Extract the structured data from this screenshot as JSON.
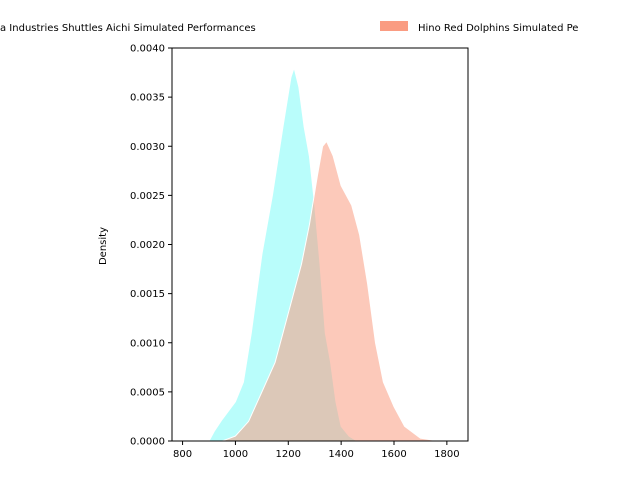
{
  "chart_data": {
    "type": "area",
    "subtype": "kde-density",
    "title": "",
    "xlabel": "",
    "ylabel": "Density",
    "xlim": [
      760,
      1880
    ],
    "ylim": [
      0,
      0.004
    ],
    "xticks": [
      800,
      1000,
      1200,
      1400,
      1600,
      1800
    ],
    "xtick_labels": [
      "800",
      "1000",
      "1200",
      "1400",
      "1600",
      "1800"
    ],
    "yticks": [
      0,
      0.0005,
      0.001,
      0.0015,
      0.002,
      0.0025,
      0.003,
      0.0035,
      0.004
    ],
    "ytick_labels": [
      "0.0000",
      "0.0005",
      "0.0010",
      "0.0015",
      "0.0020",
      "0.0025",
      "0.0030",
      "0.0035",
      "0.0040"
    ],
    "grid": false,
    "legend_position": "top, above plot",
    "series": [
      {
        "name": "Toyota Industries Shuttles Aichi Simulated Performances",
        "legend_label": "a Industries Shuttles Aichi Simulated Performances",
        "color": "#7ffbf8",
        "points": [
          [
            900,
            0
          ],
          [
            920,
            0.0001
          ],
          [
            950,
            0.00022
          ],
          [
            1000,
            0.0004
          ],
          [
            1030,
            0.0006
          ],
          [
            1060,
            0.0011
          ],
          [
            1100,
            0.0019
          ],
          [
            1140,
            0.0025
          ],
          [
            1180,
            0.0032
          ],
          [
            1210,
            0.0037
          ],
          [
            1222,
            0.0038
          ],
          [
            1240,
            0.0036
          ],
          [
            1260,
            0.0032
          ],
          [
            1280,
            0.0029
          ],
          [
            1300,
            0.0024
          ],
          [
            1320,
            0.0018
          ],
          [
            1340,
            0.0011
          ],
          [
            1360,
            0.0008
          ],
          [
            1380,
            0.0004
          ],
          [
            1400,
            0.00015
          ],
          [
            1430,
            5e-05
          ],
          [
            1460,
            0
          ]
        ]
      },
      {
        "name": "Hino Red Dolphins Simulated Performances",
        "legend_label": "Hino Red Dolphins Simulated Pe",
        "color": "#fa9c82",
        "points": [
          [
            950,
            0
          ],
          [
            1000,
            5e-05
          ],
          [
            1050,
            0.0002
          ],
          [
            1100,
            0.0005
          ],
          [
            1150,
            0.0008
          ],
          [
            1200,
            0.0013
          ],
          [
            1250,
            0.0018
          ],
          [
            1280,
            0.0022
          ],
          [
            1310,
            0.0027
          ],
          [
            1330,
            0.003
          ],
          [
            1345,
            0.00305
          ],
          [
            1370,
            0.0029
          ],
          [
            1400,
            0.0026
          ],
          [
            1440,
            0.0024
          ],
          [
            1470,
            0.0021
          ],
          [
            1500,
            0.0016
          ],
          [
            1530,
            0.001
          ],
          [
            1560,
            0.0006
          ],
          [
            1600,
            0.00035
          ],
          [
            1640,
            0.00015
          ],
          [
            1700,
            3e-05
          ],
          [
            1770,
            0
          ]
        ]
      }
    ]
  }
}
